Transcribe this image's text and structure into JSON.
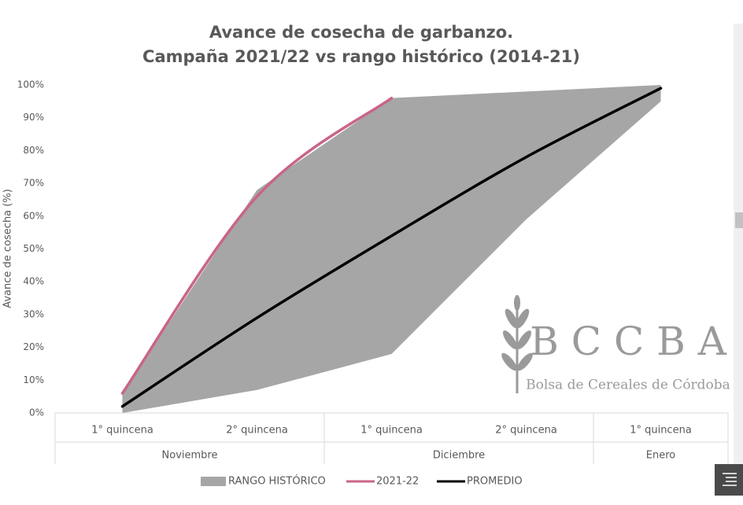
{
  "chart_data": {
    "type": "line",
    "title": "Avance de cosecha de garbanzo.",
    "subtitle": "Campaña 2021/22 vs rango histórico (2014-21)",
    "y_label": "Avance de cosecha (%)",
    "categories": [
      "1° quincena",
      "2° quincena",
      "1° quincena",
      "2° quincena",
      "1° quincena"
    ],
    "category_groups": [
      "Noviembre",
      "Noviembre",
      "Diciembre",
      "Diciembre",
      "Enero"
    ],
    "ylim": [
      0,
      100
    ],
    "yticks": [
      {
        "value": 0,
        "label": "0%"
      },
      {
        "value": 10,
        "label": "10%"
      },
      {
        "value": 20,
        "label": "20%"
      },
      {
        "value": 30,
        "label": "30%"
      },
      {
        "value": 40,
        "label": "40%"
      },
      {
        "value": 50,
        "label": "50%"
      },
      {
        "value": 60,
        "label": "60%"
      },
      {
        "value": 70,
        "label": "70%"
      },
      {
        "value": 80,
        "label": "80%"
      },
      {
        "value": 90,
        "label": "90%"
      },
      {
        "value": 100,
        "label": "100%"
      }
    ],
    "grid": false,
    "legend": "bottom",
    "band": {
      "name": "RANGO HISTÓRICO",
      "color": "#a6a6a6",
      "low": [
        0,
        7,
        18,
        59,
        95
      ],
      "high": [
        6,
        68,
        96,
        98,
        100
      ]
    },
    "series": [
      {
        "name": "2021-22",
        "color": "#c9648a",
        "values": [
          6,
          66,
          96,
          null,
          null
        ]
      },
      {
        "name": "PROMEDIO",
        "color": "#000000",
        "values": [
          2,
          29,
          54,
          78,
          99
        ]
      }
    ],
    "watermark": {
      "title": "B C C B A",
      "subtitle": "Bolsa de Cereales de Córdoba"
    }
  }
}
